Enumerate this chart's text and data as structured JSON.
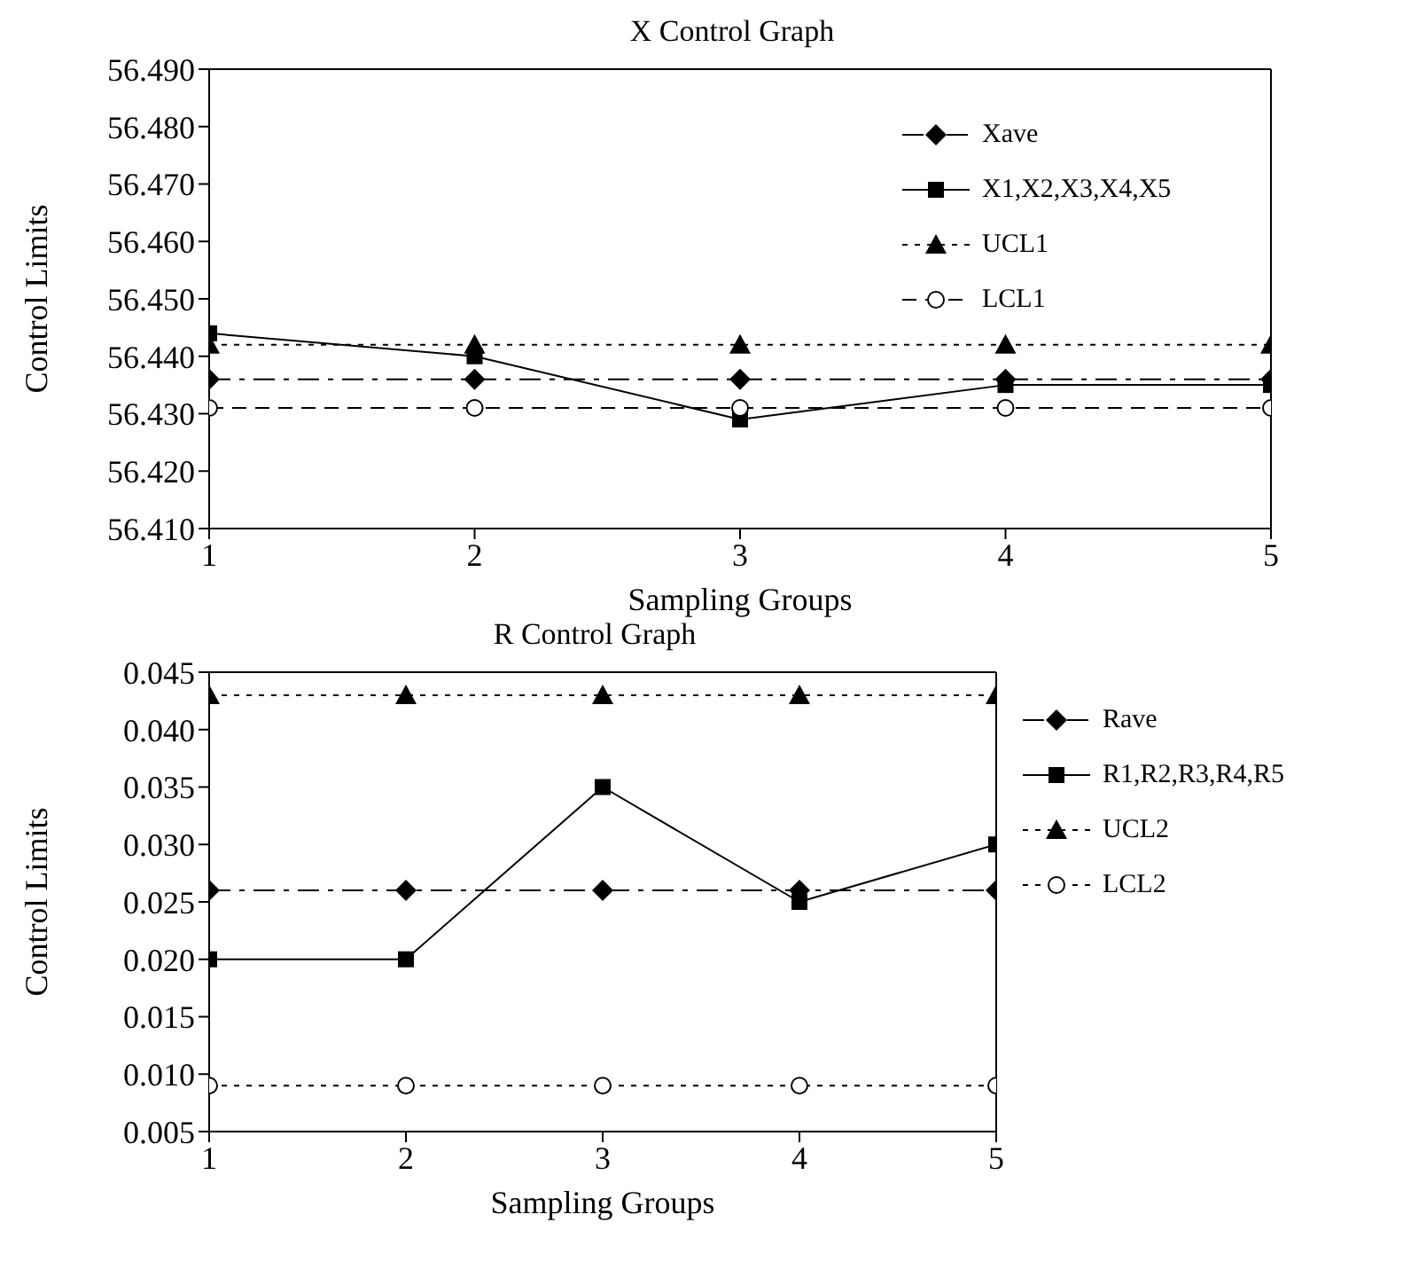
{
  "chart_data": [
    {
      "type": "line",
      "title": "X Control Graph",
      "xlabel": "Sampling Groups",
      "ylabel": "Control Limits",
      "x": [
        1,
        2,
        3,
        4,
        5
      ],
      "xlim": [
        1,
        5
      ],
      "xticks": [
        1,
        2,
        3,
        4,
        5
      ],
      "ylim": [
        56.41,
        56.49
      ],
      "yticks": [
        {
          "value": 56.41,
          "label": "56.410"
        },
        {
          "value": 56.42,
          "label": "56.420"
        },
        {
          "value": 56.43,
          "label": "56.430"
        },
        {
          "value": 56.44,
          "label": "56.440"
        },
        {
          "value": 56.45,
          "label": "56.450"
        },
        {
          "value": 56.46,
          "label": "56.460"
        },
        {
          "value": 56.47,
          "label": "56.470"
        },
        {
          "value": 56.48,
          "label": "56.480"
        },
        {
          "value": 56.49,
          "label": "56.490"
        }
      ],
      "grid": false,
      "legend": "top right",
      "series": [
        {
          "name": "Xave",
          "color": "#000000",
          "marker": "diamond",
          "line_style": "dashdot",
          "values": [
            56.436,
            56.436,
            56.436,
            56.436,
            56.436
          ]
        },
        {
          "name": "X1,X2,X3,X4,X5",
          "color": "#000000",
          "marker": "square",
          "line_style": "solid",
          "values": [
            56.444,
            56.44,
            56.429,
            56.435,
            56.435
          ]
        },
        {
          "name": "UCL1",
          "color": "#000000",
          "marker": "triangle",
          "line_style": "dotted",
          "values": [
            56.442,
            56.442,
            56.442,
            56.442,
            56.442
          ]
        },
        {
          "name": "LCL1",
          "color": "#000000",
          "marker": "circle",
          "line_style": "dashed",
          "values": [
            56.431,
            56.431,
            56.431,
            56.431,
            56.431
          ]
        }
      ]
    },
    {
      "type": "line",
      "title": "R Control Graph",
      "xlabel": "Sampling Groups",
      "ylabel": "Control Limits",
      "x": [
        1,
        2,
        3,
        4,
        5
      ],
      "xlim": [
        1,
        5
      ],
      "xticks": [
        1,
        2,
        3,
        4,
        5
      ],
      "ylim": [
        0.005,
        0.045
      ],
      "yticks": [
        {
          "value": 0.005,
          "label": "0.005"
        },
        {
          "value": 0.01,
          "label": "0.010"
        },
        {
          "value": 0.015,
          "label": "0.015"
        },
        {
          "value": 0.02,
          "label": "0.020"
        },
        {
          "value": 0.025,
          "label": "0.025"
        },
        {
          "value": 0.03,
          "label": "0.030"
        },
        {
          "value": 0.035,
          "label": "0.035"
        },
        {
          "value": 0.04,
          "label": "0.040"
        },
        {
          "value": 0.045,
          "label": "0.045"
        }
      ],
      "grid": false,
      "legend": "right",
      "series": [
        {
          "name": "Rave",
          "color": "#000000",
          "marker": "diamond",
          "line_style": "dashdot",
          "values": [
            0.026,
            0.026,
            0.026,
            0.026,
            0.026
          ]
        },
        {
          "name": "R1,R2,R3,R4,R5",
          "color": "#000000",
          "marker": "square",
          "line_style": "solid",
          "values": [
            0.02,
            0.02,
            0.035,
            0.025,
            0.03
          ]
        },
        {
          "name": "UCL2",
          "color": "#000000",
          "marker": "triangle",
          "line_style": "dotted",
          "values": [
            0.043,
            0.043,
            0.043,
            0.043,
            0.043
          ]
        },
        {
          "name": "LCL2",
          "color": "#000000",
          "marker": "circle",
          "line_style": "dotted",
          "values": [
            0.009,
            0.009,
            0.009,
            0.009,
            0.009
          ]
        }
      ]
    }
  ]
}
